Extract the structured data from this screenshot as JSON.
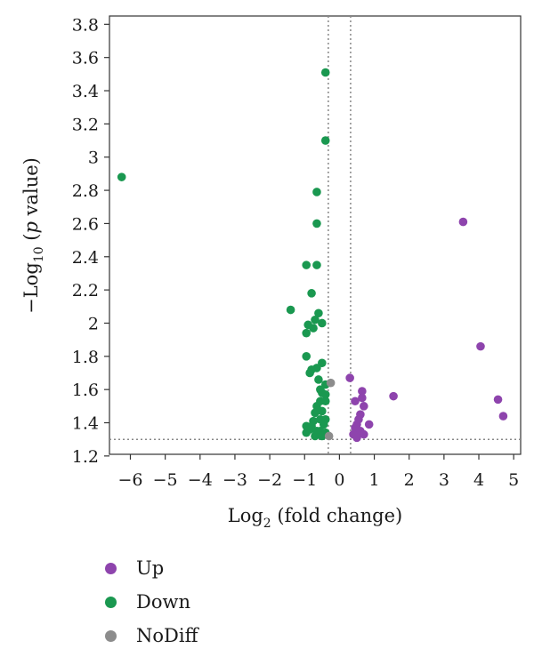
{
  "chart_data": {
    "type": "scatter",
    "xlabel": {
      "base": "Log",
      "sub": "2",
      "rest": " (fold change)"
    },
    "ylabel": {
      "prefix": "−Log",
      "sub": "10",
      "open": " (",
      "italic": "p",
      "rest": " value)"
    },
    "xlim": [
      -6.6,
      5.2
    ],
    "ylim": [
      1.21,
      3.85
    ],
    "x_ticks": [
      -6,
      -5,
      -4,
      -3,
      -2,
      -1,
      0,
      1,
      2,
      3,
      4,
      5
    ],
    "x_tick_labels": [
      "−6",
      "−5",
      "−4",
      "−3",
      "−2",
      "−1",
      "0",
      "1",
      "2",
      "3",
      "4",
      "5"
    ],
    "y_ticks": [
      1.2,
      1.4,
      1.6,
      1.8,
      2,
      2.2,
      2.4,
      2.6,
      2.8,
      3,
      3.2,
      3.4,
      3.6,
      3.8
    ],
    "y_tick_labels": [
      "1.2",
      "1.4",
      "1.6",
      "1.8",
      "2",
      "2.2",
      "2.4",
      "2.6",
      "2.8",
      "3",
      "3.2",
      "3.4",
      "3.6",
      "3.8"
    ],
    "threshold_x": [
      -0.32,
      0.32
    ],
    "threshold_y": 1.3,
    "series": [
      {
        "name": "Up",
        "color": "#8e44ad",
        "points": [
          [
            3.55,
            2.61
          ],
          [
            4.05,
            1.86
          ],
          [
            4.55,
            1.54
          ],
          [
            4.7,
            1.44
          ],
          [
            1.55,
            1.56
          ],
          [
            0.3,
            1.67
          ],
          [
            0.65,
            1.59
          ],
          [
            0.65,
            1.55
          ],
          [
            0.45,
            1.53
          ],
          [
            0.7,
            1.5
          ],
          [
            0.6,
            1.45
          ],
          [
            0.55,
            1.42
          ],
          [
            0.5,
            1.39
          ],
          [
            0.85,
            1.39
          ],
          [
            0.45,
            1.37
          ],
          [
            0.6,
            1.35
          ],
          [
            0.7,
            1.33
          ],
          [
            0.4,
            1.33
          ],
          [
            0.5,
            1.31
          ]
        ]
      },
      {
        "name": "Down",
        "color": "#1a9850",
        "points": [
          [
            -6.25,
            2.88
          ],
          [
            -0.4,
            3.51
          ],
          [
            -0.4,
            3.1
          ],
          [
            -0.65,
            2.79
          ],
          [
            -0.65,
            2.6
          ],
          [
            -0.95,
            2.35
          ],
          [
            -0.65,
            2.35
          ],
          [
            -0.8,
            2.18
          ],
          [
            -1.4,
            2.08
          ],
          [
            -0.6,
            2.06
          ],
          [
            -0.7,
            2.02
          ],
          [
            -0.9,
            1.99
          ],
          [
            -0.5,
            2.0
          ],
          [
            -0.75,
            1.97
          ],
          [
            -0.95,
            1.94
          ],
          [
            -0.95,
            1.8
          ],
          [
            -0.5,
            1.76
          ],
          [
            -0.65,
            1.73
          ],
          [
            -0.8,
            1.72
          ],
          [
            -0.85,
            1.7
          ],
          [
            -0.6,
            1.66
          ],
          [
            -0.4,
            1.63
          ],
          [
            -0.55,
            1.6
          ],
          [
            -0.5,
            1.58
          ],
          [
            -0.4,
            1.57
          ],
          [
            -0.55,
            1.53
          ],
          [
            -0.4,
            1.53
          ],
          [
            -0.65,
            1.5
          ],
          [
            -0.5,
            1.47
          ],
          [
            -0.7,
            1.46
          ],
          [
            -0.4,
            1.42
          ],
          [
            -0.55,
            1.42
          ],
          [
            -0.75,
            1.41
          ],
          [
            -0.45,
            1.39
          ],
          [
            -0.95,
            1.38
          ],
          [
            -0.8,
            1.38
          ],
          [
            -0.85,
            1.36
          ],
          [
            -0.55,
            1.35
          ],
          [
            -0.65,
            1.35
          ],
          [
            -0.95,
            1.34
          ],
          [
            -0.4,
            1.34
          ],
          [
            -0.7,
            1.32
          ],
          [
            -0.5,
            1.32
          ]
        ]
      },
      {
        "name": "NoDiff",
        "color": "#8c8c8c",
        "points": [
          [
            -0.25,
            1.64
          ],
          [
            -0.3,
            1.32
          ]
        ]
      }
    ],
    "legend_position": "bottom-left",
    "grid": false
  }
}
